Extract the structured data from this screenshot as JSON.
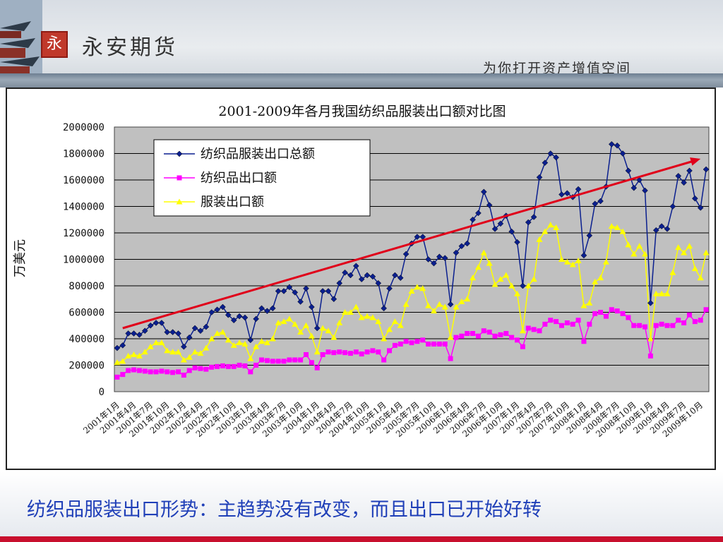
{
  "header": {
    "logo_glyph": "永",
    "brand": "永安期货",
    "slogan": "为你打开资产增值空间"
  },
  "caption": "纺织品服装出口形势：主趋势没有改变，而且出口已开始好转",
  "colors": {
    "total": "#0a1f8f",
    "textile": "#ff00ff",
    "apparel": "#ffff00",
    "trend": "#e0001a",
    "plot_bg": "#c0c0c0",
    "caption": "#1f3fb8"
  },
  "chart_data": {
    "type": "line",
    "title": "2001-2009年各月我国纺织品服装出口额对比图",
    "ylabel": "万美元",
    "ylim": [
      0,
      2000000
    ],
    "yticks": [
      0,
      200000,
      400000,
      600000,
      800000,
      1000000,
      1200000,
      1400000,
      1600000,
      1800000,
      2000000
    ],
    "grid": true,
    "legend_position": "top-left",
    "x_labels": [
      "2001年1月",
      "2001年4月",
      "2001年7月",
      "2001年10月",
      "2002年1月",
      "2002年4月",
      "2002年7月",
      "2002年10月",
      "2003年1月",
      "2003年4月",
      "2003年7月",
      "2003年10月",
      "2004年1月",
      "2004年4月",
      "2004年7月",
      "2004年10月",
      "2005年1月",
      "2005年4月",
      "2005年7月",
      "2005年10月",
      "2006年1月",
      "2006年4月",
      "2006年7月",
      "2006年10月",
      "2007年1月",
      "2007年4月",
      "2007年7月",
      "2007年10月",
      "2008年1月",
      "2008年4月",
      "2008年7月",
      "2008年10月",
      "2009年1月",
      "2009年4月",
      "2009年7月",
      "2009年10月"
    ],
    "series": [
      {
        "name": "纺织品服装出口总额",
        "marker": "diamond",
        "values": [
          330000,
          350000,
          440000,
          440000,
          430000,
          460000,
          500000,
          520000,
          520000,
          450000,
          450000,
          440000,
          340000,
          410000,
          480000,
          460000,
          490000,
          600000,
          620000,
          640000,
          580000,
          540000,
          570000,
          560000,
          390000,
          550000,
          630000,
          610000,
          630000,
          760000,
          760000,
          790000,
          750000,
          680000,
          780000,
          640000,
          480000,
          760000,
          760000,
          700000,
          820000,
          900000,
          880000,
          950000,
          850000,
          880000,
          870000,
          820000,
          630000,
          780000,
          880000,
          860000,
          1040000,
          1120000,
          1170000,
          1170000,
          1000000,
          970000,
          1020000,
          1010000,
          660000,
          1050000,
          1100000,
          1120000,
          1300000,
          1350000,
          1510000,
          1410000,
          1230000,
          1270000,
          1330000,
          1210000,
          1130000,
          800000,
          1280000,
          1320000,
          1620000,
          1730000,
          1800000,
          1770000,
          1490000,
          1500000,
          1470000,
          1530000,
          1030000,
          1180000,
          1420000,
          1440000,
          1550000,
          1870000,
          1860000,
          1800000,
          1670000,
          1540000,
          1600000,
          1520000,
          670000,
          1220000,
          1250000,
          1230000,
          1400000,
          1630000,
          1580000,
          1670000,
          1460000,
          1390000,
          1680000
        ]
      },
      {
        "name": "纺织品出口额",
        "marker": "square",
        "values": [
          110000,
          130000,
          160000,
          165000,
          160000,
          155000,
          150000,
          150000,
          155000,
          150000,
          145000,
          150000,
          125000,
          160000,
          180000,
          175000,
          170000,
          185000,
          190000,
          195000,
          190000,
          190000,
          200000,
          195000,
          150000,
          200000,
          240000,
          235000,
          230000,
          230000,
          230000,
          240000,
          240000,
          240000,
          280000,
          220000,
          180000,
          280000,
          300000,
          295000,
          300000,
          295000,
          290000,
          300000,
          285000,
          300000,
          310000,
          300000,
          240000,
          310000,
          350000,
          360000,
          380000,
          370000,
          380000,
          390000,
          360000,
          360000,
          360000,
          360000,
          250000,
          410000,
          420000,
          440000,
          440000,
          420000,
          460000,
          450000,
          420000,
          430000,
          440000,
          410000,
          390000,
          340000,
          480000,
          470000,
          460000,
          510000,
          540000,
          530000,
          500000,
          520000,
          510000,
          540000,
          380000,
          510000,
          590000,
          600000,
          570000,
          620000,
          610000,
          590000,
          560000,
          500000,
          500000,
          490000,
          270000,
          500000,
          510000,
          500000,
          500000,
          540000,
          520000,
          580000,
          530000,
          540000,
          620000
        ]
      },
      {
        "name": "服装出口额",
        "marker": "triangle",
        "values": [
          220000,
          230000,
          270000,
          280000,
          270000,
          300000,
          340000,
          370000,
          370000,
          310000,
          300000,
          300000,
          240000,
          260000,
          300000,
          290000,
          330000,
          400000,
          440000,
          450000,
          390000,
          350000,
          370000,
          360000,
          250000,
          340000,
          380000,
          370000,
          400000,
          520000,
          530000,
          550000,
          510000,
          450000,
          500000,
          420000,
          300000,
          480000,
          460000,
          410000,
          520000,
          600000,
          600000,
          640000,
          560000,
          570000,
          560000,
          530000,
          400000,
          470000,
          530000,
          500000,
          660000,
          760000,
          790000,
          780000,
          650000,
          610000,
          660000,
          640000,
          410000,
          640000,
          680000,
          700000,
          860000,
          940000,
          1050000,
          970000,
          810000,
          850000,
          880000,
          800000,
          740000,
          460000,
          800000,
          850000,
          1150000,
          1210000,
          1260000,
          1240000,
          1000000,
          980000,
          960000,
          990000,
          650000,
          670000,
          830000,
          860000,
          980000,
          1250000,
          1240000,
          1210000,
          1110000,
          1040000,
          1100000,
          1040000,
          400000,
          740000,
          740000,
          740000,
          900000,
          1090000,
          1050000,
          1100000,
          930000,
          860000,
          1050000
        ]
      }
    ],
    "trendline": {
      "from_month_index": 1,
      "from_value": 480000,
      "to_month_index": 105,
      "to_value": 1760000
    }
  }
}
